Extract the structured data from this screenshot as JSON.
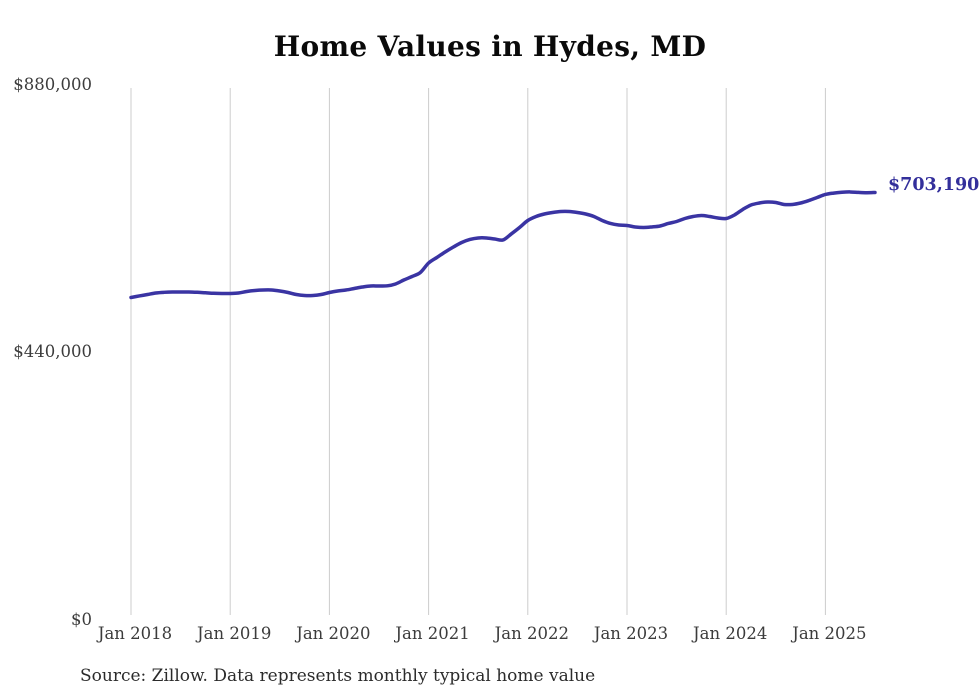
{
  "page": {
    "background": "#ffffff"
  },
  "chart_data": {
    "type": "line",
    "title": "Home Values in Hydes, MD",
    "xlabel": "",
    "ylabel": "",
    "ylim": [
      0,
      880000
    ],
    "grid": "vertical-only",
    "legend": "none",
    "line_color": "#3a34a3",
    "end_label_color": "#332f9b",
    "grid_color": "#cccccc",
    "tick_color": "#3c3c3c",
    "x_tick_labels": [
      "Jan 2018",
      "Jan 2019",
      "Jan 2020",
      "Jan 2021",
      "Jan 2022",
      "Jan 2023",
      "Jan 2024",
      "Jan 2025"
    ],
    "y_tick_labels": [
      {
        "label": "$0",
        "value": 0
      },
      {
        "label": "$440,000",
        "value": 440000
      },
      {
        "label": "$880,000",
        "value": 880000
      }
    ],
    "end_label": "$703,190",
    "end_value": 703190,
    "source": "Source: Zillow. Data represents monthly typical home value",
    "series": [
      {
        "name": "Typical home value (monthly)",
        "x_start": "2018-01",
        "x_end": "2025-07",
        "x_interval": "month",
        "values": [
          530500,
          533000,
          535400,
          537900,
          539000,
          539500,
          539500,
          539500,
          539000,
          538200,
          537400,
          537100,
          537100,
          537900,
          540400,
          542000,
          542800,
          542800,
          541200,
          538700,
          535400,
          533800,
          533800,
          535400,
          538700,
          541200,
          542800,
          545300,
          547700,
          549400,
          549400,
          549700,
          552700,
          559200,
          565000,
          571600,
          587200,
          596300,
          605300,
          613500,
          620900,
          625900,
          628400,
          628400,
          626700,
          625100,
          635000,
          645600,
          657100,
          663700,
          667800,
          670300,
          671900,
          671900,
          670300,
          667800,
          663700,
          657100,
          652200,
          649700,
          648900,
          646500,
          645600,
          646500,
          648100,
          652200,
          655500,
          660400,
          663700,
          665400,
          663700,
          661200,
          660400,
          666200,
          675300,
          682600,
          685900,
          687600,
          686800,
          683500,
          683500,
          685900,
          690000,
          695000,
          699900,
          702200,
          703600,
          704100,
          703300,
          702800,
          703190
        ]
      }
    ]
  }
}
